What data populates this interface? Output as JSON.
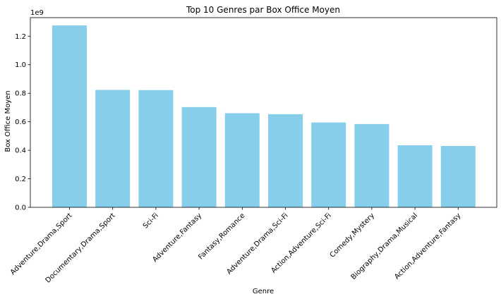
{
  "chart_data": {
    "type": "bar",
    "title": "Top 10 Genres par Box Office Moyen",
    "xlabel": "Genre",
    "ylabel": "Box Office Moyen",
    "offset_text": "1e9",
    "categories": [
      "Adventure,Drama,Sport",
      "Documentary,Drama,Sport",
      "Sci-Fi",
      "Adventure,Fantasy",
      "Fantasy,Romance",
      "Adventure,Drama,Sci-Fi",
      "Action,Adventure,Sci-Fi",
      "Comedy,Mystery",
      "Biography,Drama,Musical",
      "Action,Adventure,Fantasy"
    ],
    "values": [
      1.275,
      0.823,
      0.822,
      0.703,
      0.66,
      0.653,
      0.595,
      0.584,
      0.435,
      0.43
    ],
    "ylim": [
      0,
      1.33
    ],
    "yticks": [
      "0.0",
      "0.2",
      "0.4",
      "0.6",
      "0.8",
      "1.0",
      "1.2"
    ],
    "bar_color": "#87ceeb",
    "grid": false,
    "legend": "none"
  }
}
